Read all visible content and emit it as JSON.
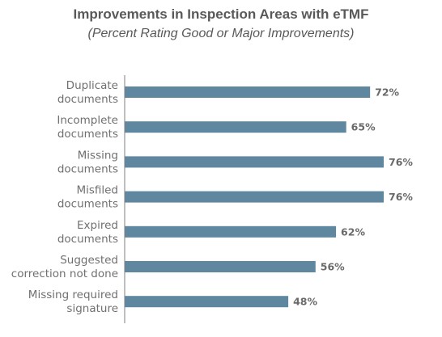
{
  "chart_data": {
    "type": "bar",
    "orientation": "horizontal",
    "title": "Improvements in Inspection Areas with eTMF",
    "subtitle": "(Percent Rating Good or Major Improvements)",
    "categories": [
      [
        "Duplicate",
        "documents"
      ],
      [
        "Incomplete",
        "documents"
      ],
      [
        "Missing",
        "documents"
      ],
      [
        "Misfiled",
        "documents"
      ],
      [
        "Expired",
        "documents"
      ],
      [
        "Suggested",
        "correction not done"
      ],
      [
        "Missing required",
        "signature"
      ]
    ],
    "values": [
      72,
      65,
      76,
      76,
      62,
      56,
      48
    ],
    "value_labels": [
      "72%",
      "65%",
      "76%",
      "76%",
      "62%",
      "56%",
      "48%"
    ],
    "xlim": [
      0,
      100
    ],
    "grid": false,
    "legend": "none",
    "bar_color": "#5f87a0",
    "axis_color": "#7f7f7f"
  }
}
